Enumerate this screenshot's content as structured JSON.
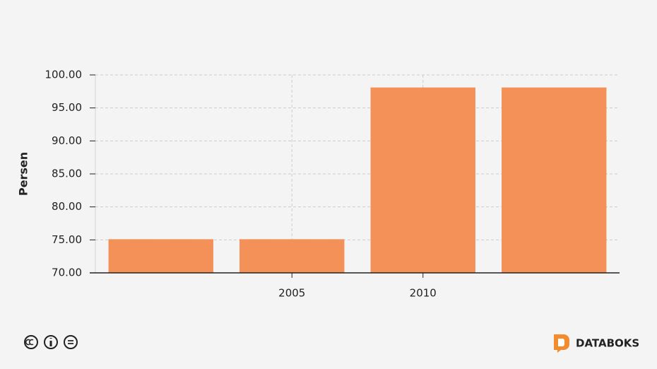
{
  "chart_data": {
    "type": "bar",
    "y_label": "Persen",
    "categories": [
      null,
      "2005",
      "2010",
      null
    ],
    "values": [
      75.1,
      75.1,
      98.1,
      98.1
    ],
    "color": "#f38b4f",
    "ylim": [
      70,
      100
    ],
    "yticks": [
      {
        "value": 70,
        "label": "70.00"
      },
      {
        "value": 75,
        "label": "75.00"
      },
      {
        "value": 80,
        "label": "80.00"
      },
      {
        "value": 85,
        "label": "85.00"
      },
      {
        "value": 90,
        "label": "90.00"
      },
      {
        "value": 95,
        "label": "95.00"
      },
      {
        "value": 100,
        "label": "100.00"
      }
    ],
    "grid": true
  },
  "footer": {
    "brand": "DATABOKS"
  }
}
